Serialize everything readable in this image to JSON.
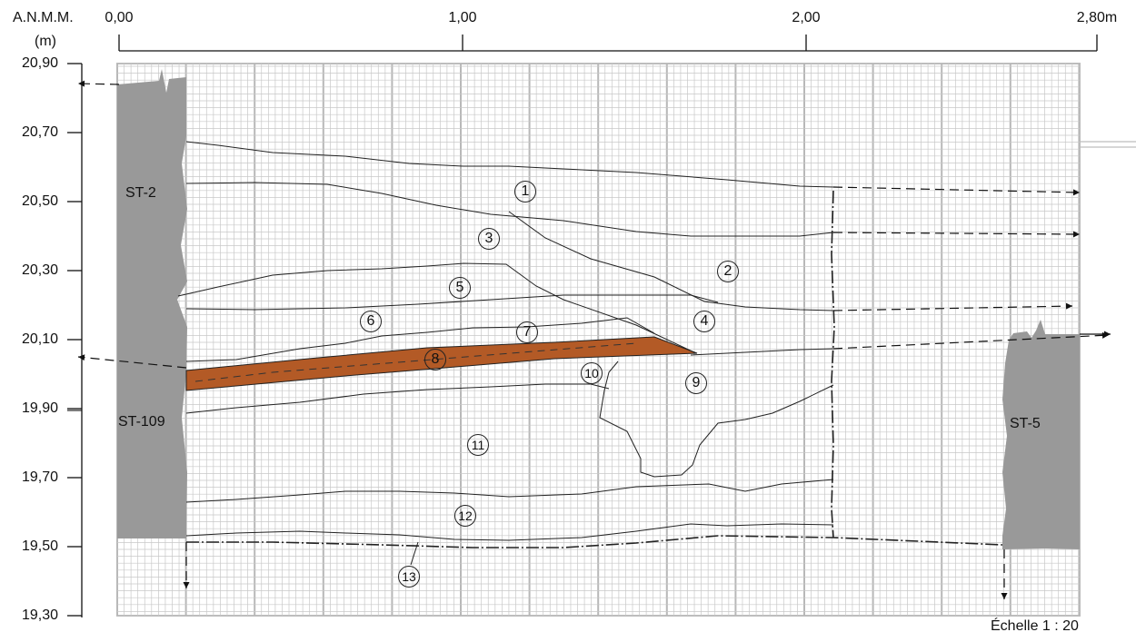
{
  "axes": {
    "y_title_line1": "A.N.M.M.",
    "y_title_line2": "(m)",
    "y_ticks": [
      "20,90",
      "20,70",
      "20,50",
      "20,30",
      "20,10",
      "19,90",
      "19,70",
      "19,50",
      "19,30"
    ],
    "x_ticks": [
      "0,00",
      "1,00",
      "2,00",
      "2,80m"
    ]
  },
  "walls": {
    "left_upper": "ST-2",
    "left_lower": "ST-109",
    "right": "ST-5"
  },
  "layers": [
    "1",
    "2",
    "3",
    "4",
    "5",
    "6",
    "7",
    "8",
    "9",
    "10",
    "11",
    "12",
    "13"
  ],
  "scale": "Échelle  1 : 20",
  "colors": {
    "layer_8_fill": "#b35a26",
    "wall_fill": "#999999",
    "grid": "#c8c8c8"
  }
}
